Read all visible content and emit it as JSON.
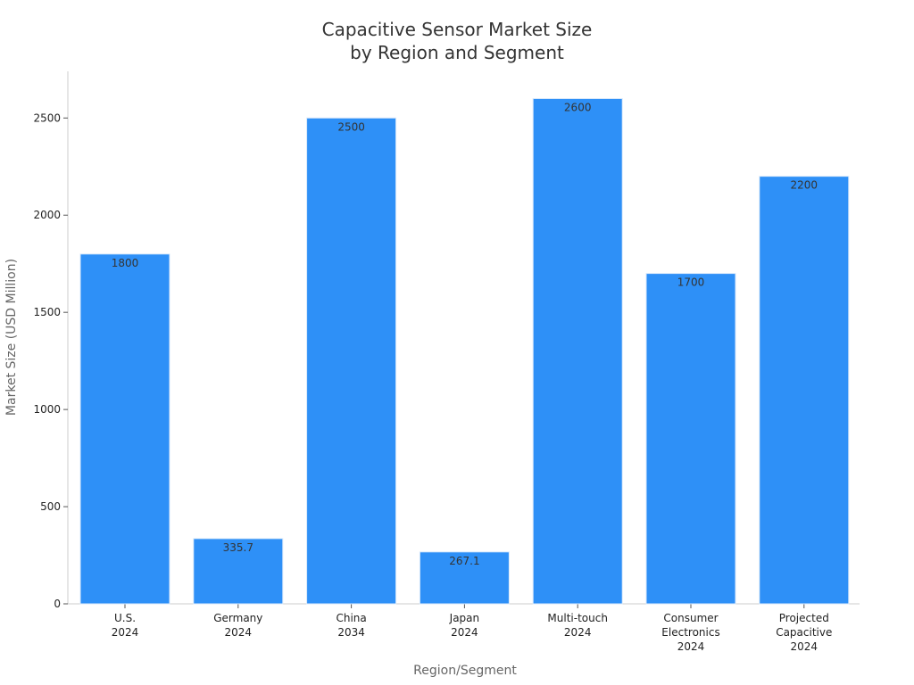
{
  "chart_data": {
    "type": "bar",
    "title": [
      "Capacitive Sensor Market Size",
      "by Region and Segment"
    ],
    "xlabel": "Region/Segment",
    "ylabel": "Market Size (USD Million)",
    "categories": [
      [
        "U.S.",
        "2024"
      ],
      [
        "Germany",
        "2024"
      ],
      [
        "China",
        "2034"
      ],
      [
        "Japan",
        "2024"
      ],
      [
        "Multi-touch",
        "2024"
      ],
      [
        "Consumer",
        "Electronics",
        "2024"
      ],
      [
        "Projected",
        "Capacitive",
        "2024"
      ]
    ],
    "values": [
      1800,
      335.7,
      2500,
      267.1,
      2600,
      1700,
      2200
    ],
    "data_labels": [
      "1800",
      "335.7",
      "2500",
      "267.1",
      "2600",
      "1700",
      "2200"
    ],
    "yticks": [
      0,
      500,
      1000,
      1500,
      2000,
      2500
    ],
    "ylim": [
      0,
      2740
    ],
    "grid": false,
    "legend": "none",
    "colors": {
      "bar": "#2e90f7",
      "bar_edge": "#d9e9fb",
      "axis": "#cccccc",
      "title": "#333333",
      "axis_label": "#666666",
      "tick": "#222222",
      "data_label": "#333333"
    }
  }
}
